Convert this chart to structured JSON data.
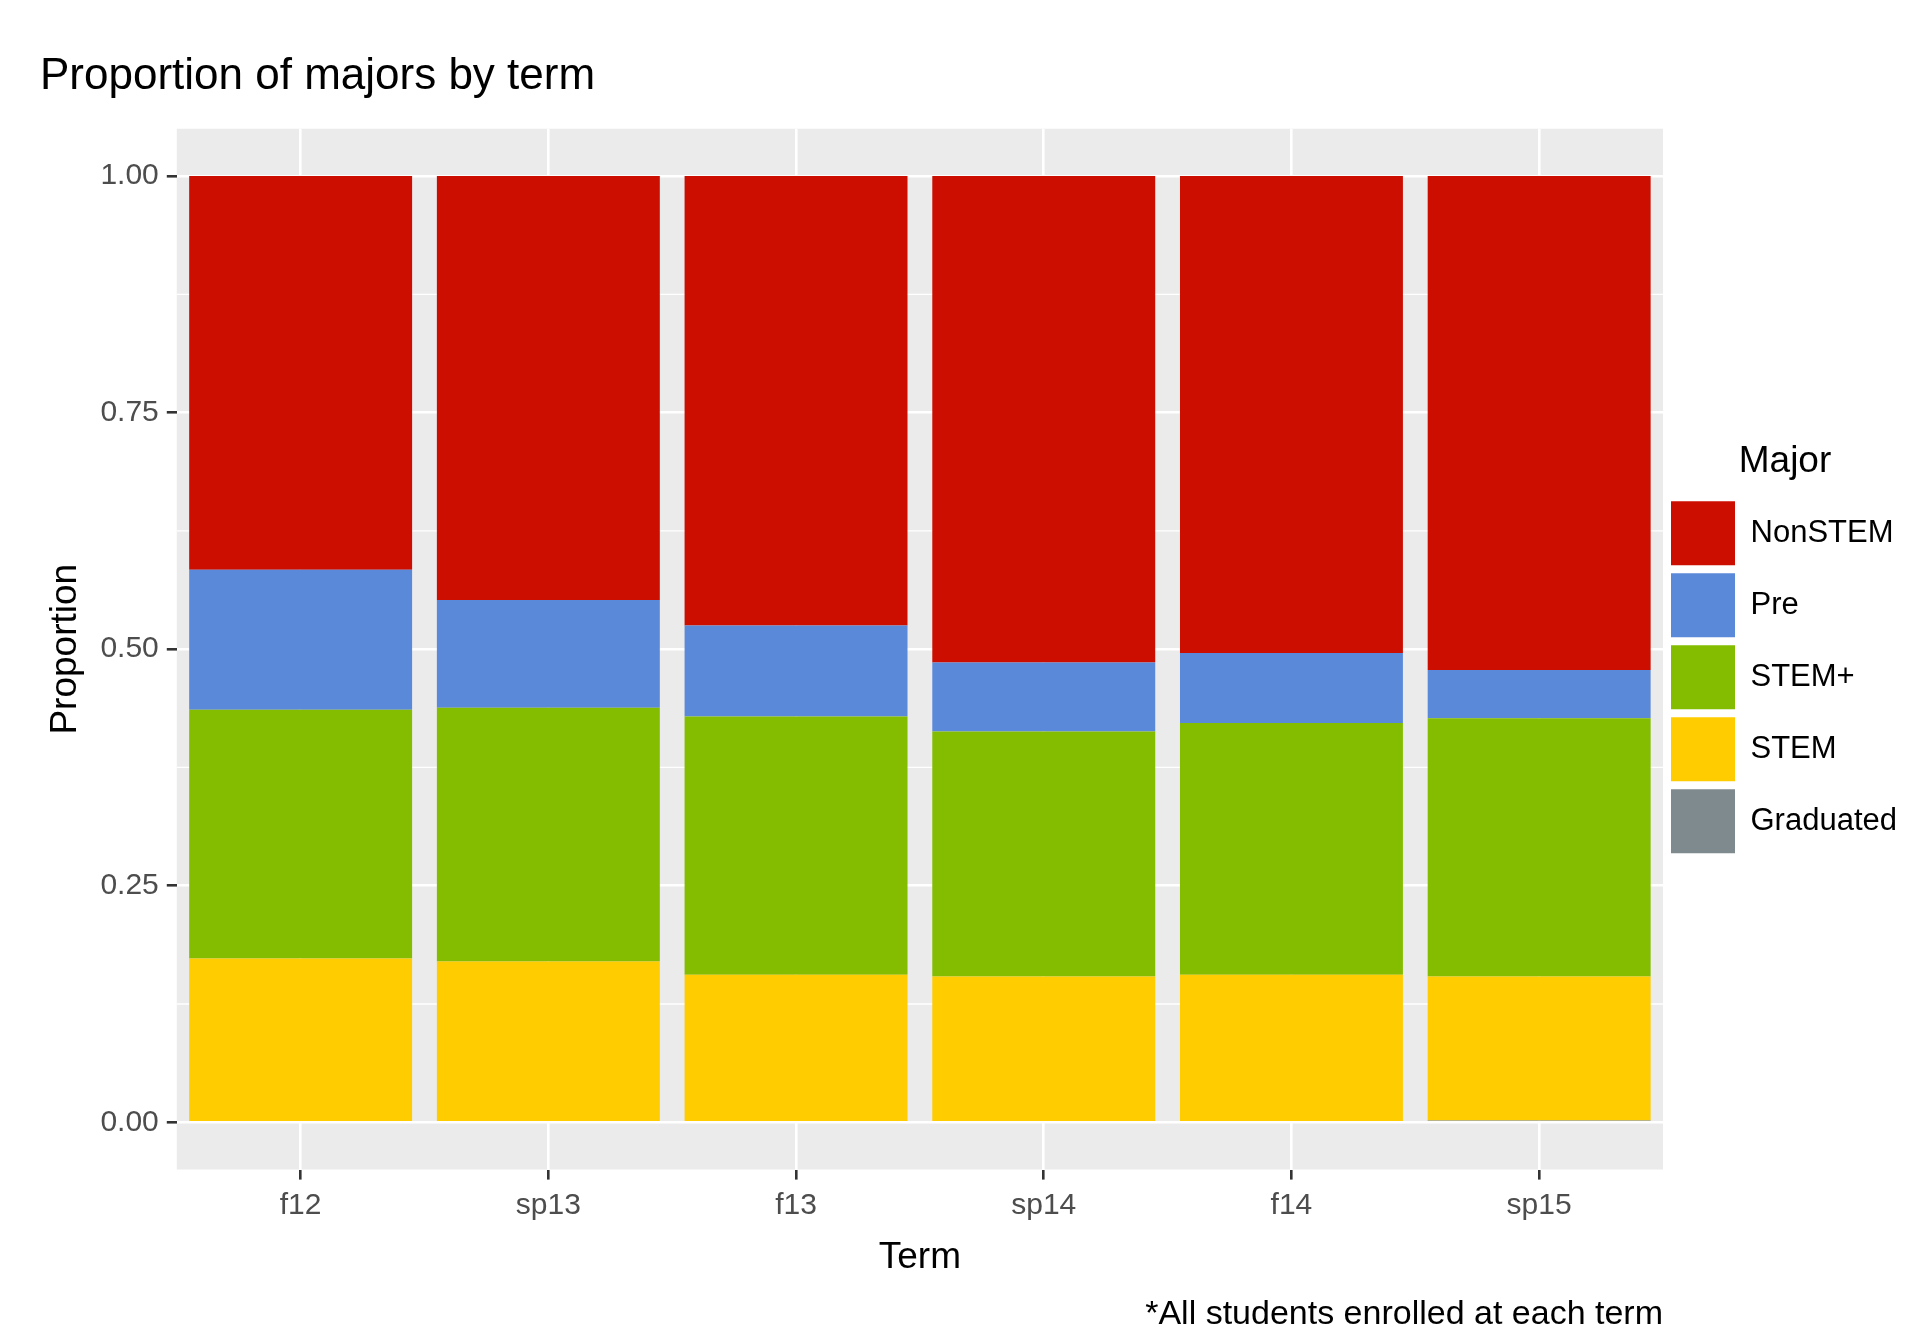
{
  "chart_data": {
    "type": "bar",
    "title": "Proportion of majors by term",
    "xlabel": "Term",
    "ylabel": "Proportion",
    "legend_title": "Major",
    "annotations": [
      "*All students enrolled at each term"
    ],
    "categories": [
      "f12",
      "sp13",
      "f13",
      "sp14",
      "f14",
      "sp15"
    ],
    "stacked": true,
    "series": [
      {
        "name": "Graduated",
        "color": "#7f8a8f",
        "values": [
          0,
          0,
          0,
          0,
          0,
          0.002
        ]
      },
      {
        "name": "STEM",
        "color": "#ffcc00",
        "values": [
          0.173,
          0.17,
          0.156,
          0.154,
          0.156,
          0.152
        ]
      },
      {
        "name": "STEM+",
        "color": "#84bd00",
        "values": [
          0.263,
          0.268,
          0.273,
          0.259,
          0.266,
          0.273
        ]
      },
      {
        "name": "Pre",
        "color": "#5b89d9",
        "values": [
          0.148,
          0.114,
          0.096,
          0.073,
          0.074,
          0.051
        ]
      },
      {
        "name": "NonSTEM",
        "color": "#cc0e00",
        "values": [
          0.416,
          0.448,
          0.475,
          0.514,
          0.504,
          0.522
        ]
      }
    ],
    "ylim": [
      -0.05,
      1.05
    ],
    "yticks": [
      {
        "value": 0,
        "label": "0.00"
      },
      {
        "value": 0.25,
        "label": "0.25"
      },
      {
        "value": 0.5,
        "label": "0.50"
      },
      {
        "value": 0.75,
        "label": "0.75"
      },
      {
        "value": 1,
        "label": "1.00"
      }
    ],
    "grid": true,
    "legend": "right"
  }
}
